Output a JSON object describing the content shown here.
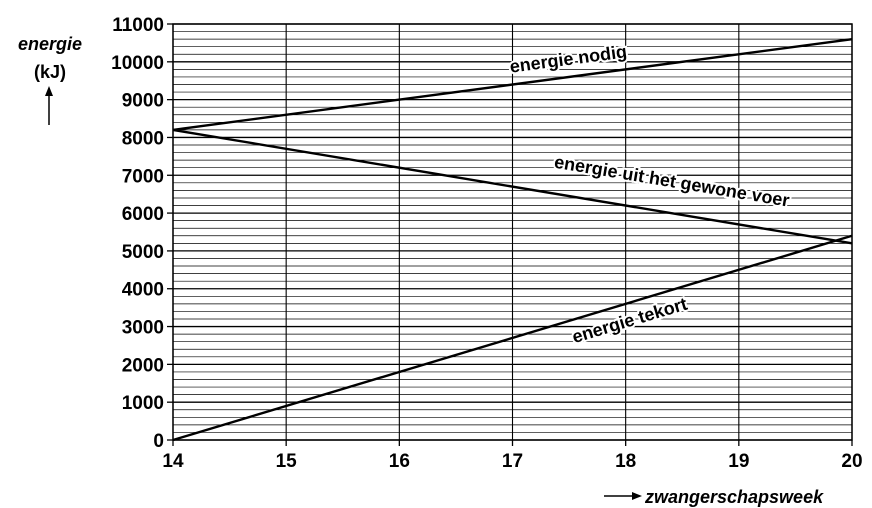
{
  "chart_data": {
    "type": "line",
    "ylabel": "energie",
    "yunit": "(kJ)",
    "xlabel": "zwangerschapsweek",
    "xlim": [
      14,
      20
    ],
    "ylim": [
      0,
      11000
    ],
    "xticks": [
      "14",
      "15",
      "16",
      "17",
      "18",
      "19",
      "20"
    ],
    "yticks": [
      "0",
      "1000",
      "2000",
      "3000",
      "4000",
      "5000",
      "6000",
      "7000",
      "8000",
      "9000",
      "10000",
      "11000"
    ],
    "grid": true,
    "series": [
      {
        "name": "energie nodig",
        "x": [
          14,
          20
        ],
        "values": [
          8200,
          10600
        ]
      },
      {
        "name": "energie uit het gewone voer",
        "x": [
          14,
          20
        ],
        "values": [
          8200,
          5200
        ]
      },
      {
        "name": "energie tekort",
        "x": [
          14,
          20
        ],
        "values": [
          0,
          5400
        ]
      }
    ]
  }
}
